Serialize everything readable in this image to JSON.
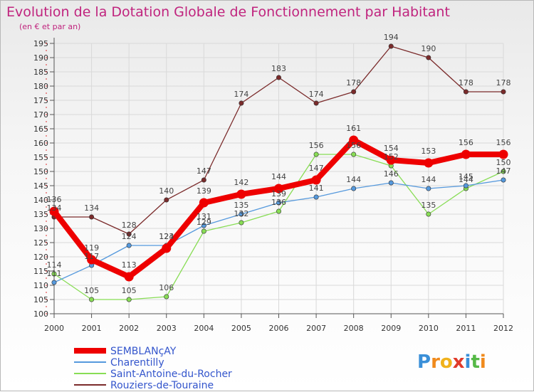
{
  "chart_data": {
    "type": "line",
    "title": "Evolution de la Dotation Globale de Fonctionnement par Habitant",
    "subtitle": "(en € et par an)",
    "x": [
      "2000",
      "2001",
      "2002",
      "2003",
      "2004",
      "2005",
      "2006",
      "2007",
      "2008",
      "2009",
      "2010",
      "2011",
      "2012"
    ],
    "ylim": [
      100,
      195
    ],
    "yticks": [
      100,
      105,
      110,
      115,
      120,
      125,
      130,
      135,
      140,
      145,
      150,
      155,
      160,
      165,
      170,
      175,
      180,
      185,
      190,
      195
    ],
    "grid": true,
    "legend": "bottom-left",
    "series": [
      {
        "name": "Rouziers-de-Touraine",
        "color": "#7b2b2b",
        "values": [
          134,
          134,
          128,
          140,
          147,
          174,
          183,
          174,
          178,
          194,
          190,
          178,
          178
        ]
      },
      {
        "name": "Saint-Antoine-du-Rocher",
        "color": "#88dd55",
        "values": [
          114,
          105,
          105,
          106,
          129,
          132,
          136,
          156,
          156,
          152,
          135,
          144,
          150
        ]
      },
      {
        "name": "Charentilly",
        "color": "#5599dd",
        "values": [
          111,
          117,
          124,
          124,
          131,
          135,
          139,
          141,
          144,
          146,
          144,
          145,
          147
        ]
      },
      {
        "name": "SEMBLANçAY",
        "color": "#ee0000",
        "values": [
          136,
          119,
          113,
          123,
          139,
          142,
          144,
          147,
          161,
          154,
          153,
          156,
          156
        ]
      }
    ]
  },
  "logo": {
    "text": "Proxiti",
    "letters": [
      "P",
      "r",
      "o",
      "x",
      "i",
      "t",
      "i"
    ]
  }
}
